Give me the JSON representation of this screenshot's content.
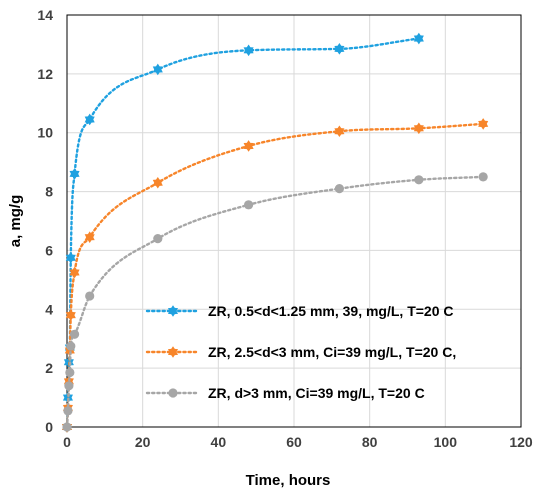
{
  "chart_data": {
    "type": "scatter",
    "xlabel": "Time, hours",
    "ylabel": "a, mg/g",
    "xlim": [
      0,
      120
    ],
    "ylim": [
      0,
      14
    ],
    "x_ticks": [
      "0",
      "20",
      "40",
      "60",
      "80",
      "100",
      "120"
    ],
    "y_ticks": [
      "0",
      "2",
      "4",
      "6",
      "8",
      "10",
      "12",
      "14"
    ],
    "grid": true,
    "legend_position": "bottom-right",
    "series": [
      {
        "name": "ZR, 0.5<d<1.25 mm,  39, mg/L, T=20 C",
        "color": "#1fa1e0",
        "marker": "star",
        "x": [
          0,
          0.25,
          0.5,
          0.75,
          1,
          2,
          6,
          24,
          48,
          72,
          93
        ],
        "y": [
          0,
          1.0,
          2.2,
          2.7,
          5.75,
          8.6,
          10.45,
          12.15,
          12.8,
          12.85,
          13.2
        ]
      },
      {
        "name": "ZR, 2.5<d<3 mm, Ci=39 mg/L, T=20 C,",
        "color": "#f7852a",
        "marker": "star",
        "x": [
          0,
          0.25,
          0.5,
          0.75,
          1,
          2,
          6,
          24,
          48,
          72,
          93,
          110
        ],
        "y": [
          0,
          0.65,
          1.55,
          2.6,
          3.8,
          5.25,
          6.45,
          8.3,
          9.55,
          10.05,
          10.15,
          10.3
        ]
      },
      {
        "name": "ZR, d>3 mm, Ci=39 mg/L, T=20 C",
        "color": "#a6a6a6",
        "marker": "circle",
        "x": [
          0,
          0.25,
          0.5,
          0.75,
          1,
          2,
          6,
          24,
          48,
          72,
          93,
          110
        ],
        "y": [
          0,
          0.55,
          1.4,
          1.85,
          2.75,
          3.15,
          4.45,
          6.4,
          7.55,
          8.1,
          8.4,
          8.5
        ]
      }
    ]
  }
}
